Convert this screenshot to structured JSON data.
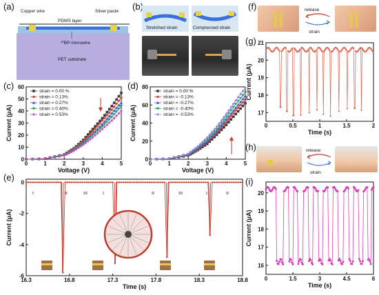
{
  "panels": {
    "a": {
      "letter": "(a)",
      "labels": {
        "copper_wire": "Copper wire",
        "silver_paste": "Silver paste",
        "pdms": "PDMS layer",
        "microwire": "¹⁰BP microwire",
        "pet": "PET substrate"
      }
    },
    "b": {
      "letter": "(b)",
      "labels": {
        "stretched": "Stretched strain",
        "compressed": "Compressed strain"
      }
    },
    "c": {
      "letter": "(c)"
    },
    "d": {
      "letter": "(d)"
    },
    "e": {
      "letter": "(e)",
      "roman": [
        "I",
        "II",
        "III",
        "I",
        "II",
        "III",
        "I",
        "II"
      ]
    },
    "f": {
      "letter": "(f)",
      "release": "release",
      "strain": "strain"
    },
    "g": {
      "letter": "(g)"
    },
    "h": {
      "letter": "(h)",
      "release": "release",
      "strain": "strain"
    },
    "i": {
      "letter": "(i)"
    }
  },
  "colors": {
    "c_series": [
      "#3a3a3a",
      "#d9453a",
      "#3b56c9",
      "#1f9e5a",
      "#c948c9"
    ],
    "d_series": [
      "#3a3a3a",
      "#d9453a",
      "#3b56c9",
      "#1f9e5a",
      "#9a7de0"
    ],
    "trace_e": "#c0392b",
    "trace_g": "#e0624a",
    "trace_i": "#d63fb5",
    "arrow": "#c0392b"
  },
  "chart_data": [
    {
      "id": "c",
      "type": "line",
      "xlabel": "Voltage (V)",
      "ylabel": "Current (μA)",
      "xlim": [
        0,
        5
      ],
      "ylim": [
        0,
        60
      ],
      "xticks": [
        0,
        1,
        2,
        3,
        4,
        5
      ],
      "yticks": [
        0,
        10,
        20,
        30,
        40,
        50,
        60
      ],
      "legend_position": "top-left",
      "series": [
        {
          "name": "strain = 0.00 %",
          "x": [
            0,
            1,
            2,
            2.5,
            3,
            3.5,
            4,
            4.5,
            5
          ],
          "y": [
            0,
            0.5,
            4,
            9,
            16,
            25,
            34,
            44,
            55
          ]
        },
        {
          "name": "strain = 0.13%",
          "x": [
            0,
            1,
            2,
            2.5,
            3,
            3.5,
            4,
            4.5,
            5
          ],
          "y": [
            0,
            0.5,
            3.8,
            8.5,
            15,
            23,
            32,
            41,
            51
          ]
        },
        {
          "name": "strain = 0.27%",
          "x": [
            0,
            1,
            2,
            2.5,
            3,
            3.5,
            4,
            4.5,
            5
          ],
          "y": [
            0,
            0.4,
            3.5,
            8,
            14,
            21,
            29,
            38,
            47
          ]
        },
        {
          "name": "strain = 0.40%",
          "x": [
            0,
            1,
            2,
            2.5,
            3,
            3.5,
            4,
            4.5,
            5
          ],
          "y": [
            0,
            0.4,
            3.2,
            7.5,
            13,
            20,
            27,
            35,
            44
          ]
        },
        {
          "name": "strain = 0.53%",
          "x": [
            0,
            1,
            2,
            2.5,
            3,
            3.5,
            4,
            4.5,
            5
          ],
          "y": [
            0,
            0.3,
            3,
            7,
            12,
            18,
            25,
            32,
            40
          ]
        }
      ]
    },
    {
      "id": "d",
      "type": "line",
      "xlabel": "Voltage (V)",
      "ylabel": "Current (μA)",
      "xlim": [
        0,
        5
      ],
      "ylim": [
        0,
        80
      ],
      "xticks": [
        0,
        1,
        2,
        3,
        4,
        5
      ],
      "yticks": [
        0,
        20,
        40,
        60,
        80
      ],
      "legend_position": "top-left",
      "series": [
        {
          "name": "strain = 0.00 %",
          "x": [
            0,
            1,
            2,
            2.5,
            3,
            3.5,
            4,
            4.5,
            5
          ],
          "y": [
            0,
            0.5,
            4,
            10,
            17,
            27,
            38,
            50,
            62
          ]
        },
        {
          "name": "strain = -0.13%",
          "x": [
            0,
            1,
            2,
            2.5,
            3,
            3.5,
            4,
            4.5,
            5
          ],
          "y": [
            0,
            0.5,
            4.5,
            11,
            19,
            29,
            41,
            54,
            66
          ]
        },
        {
          "name": "strain = -0.27%",
          "x": [
            0,
            1,
            2,
            2.5,
            3,
            3.5,
            4,
            4.5,
            5
          ],
          "y": [
            0,
            0.6,
            5,
            12,
            20,
            31,
            44,
            57,
            70
          ]
        },
        {
          "name": "strain = -0.40%",
          "x": [
            0,
            1,
            2,
            2.5,
            3,
            3.5,
            4,
            4.5,
            5
          ],
          "y": [
            0,
            0.6,
            5.5,
            13,
            22,
            33,
            47,
            61,
            74
          ]
        },
        {
          "name": "strain = -0.53%",
          "x": [
            0,
            1,
            2,
            2.5,
            3,
            3.5,
            4,
            4.5,
            5
          ],
          "y": [
            0,
            0.7,
            6,
            14,
            24,
            36,
            50,
            65,
            79
          ]
        }
      ]
    },
    {
      "id": "e",
      "type": "line",
      "xlabel": "Time (s)",
      "ylabel": "Current (μA)",
      "xlim": [
        16.3,
        18.8
      ],
      "ylim": [
        -6,
        0.2
      ],
      "xticks": [
        16.3,
        16.8,
        17.3,
        17.8,
        18.3,
        18.8
      ],
      "yticks": [
        -6,
        -4,
        -2,
        0
      ],
      "series": [
        {
          "baseline": 0,
          "spikes": [
            {
              "t": 16.72,
              "y": -5.8
            },
            {
              "t": 17.33,
              "y": -5.2
            },
            {
              "t": 17.93,
              "y": -4.8
            },
            {
              "t": 18.42,
              "y": -3.4
            }
          ]
        }
      ]
    },
    {
      "id": "g",
      "type": "line",
      "xlabel": "Time (s)",
      "ylabel": "Current (μA)",
      "xlim": [
        0,
        2
      ],
      "ylim": [
        16.5,
        21
      ],
      "xticks": [
        0.0,
        0.5,
        1.0,
        1.5,
        2.0
      ],
      "yticks": [
        17,
        18,
        19,
        20,
        21
      ],
      "series": [
        {
          "baseline": 20.6,
          "dips": [
            0.27,
            0.39,
            0.51,
            0.65,
            0.8,
            0.95,
            1.07,
            1.2,
            1.36,
            1.51,
            1.65,
            1.78
          ],
          "dip_min": 16.8
        }
      ]
    },
    {
      "id": "i",
      "type": "line",
      "xlabel": "Time (s)",
      "ylabel": "Current (μA)",
      "xlim": [
        0,
        6
      ],
      "ylim": [
        15.5,
        20.6
      ],
      "xticks": [
        0.0,
        1.5,
        3.0,
        4.5,
        6.0
      ],
      "yticks": [
        16,
        17,
        18,
        19,
        20
      ],
      "series": [
        {
          "baseline": 20.2,
          "low": 16.2,
          "dips": [
            [
              0.55,
              1.0
            ],
            [
              1.3,
              1.55
            ],
            [
              1.8,
              2.1
            ],
            [
              2.35,
              2.6
            ],
            [
              2.9,
              3.15
            ],
            [
              3.45,
              3.7
            ],
            [
              4.0,
              4.3
            ],
            [
              4.6,
              4.85
            ],
            [
              5.15,
              5.4
            ],
            [
              5.65,
              5.85
            ]
          ]
        }
      ]
    }
  ]
}
